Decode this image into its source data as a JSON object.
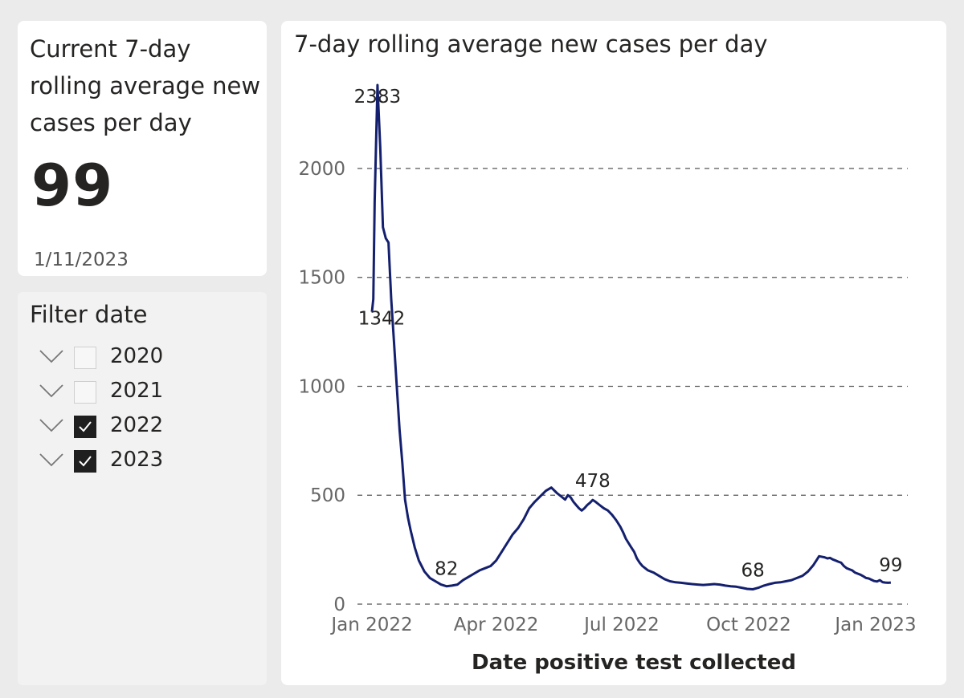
{
  "kpi": {
    "title": "Current 7-day rolling average new cases per day",
    "value": "99",
    "date": "1/11/2023"
  },
  "filter": {
    "title": "Filter date",
    "items": [
      {
        "label": "2020",
        "checked": false
      },
      {
        "label": "2021",
        "checked": false
      },
      {
        "label": "2022",
        "checked": true
      },
      {
        "label": "2023",
        "checked": true
      }
    ]
  },
  "colors": {
    "line": "#14206e",
    "highlight": "#9aa0c8",
    "grid": "#555555"
  },
  "chart_data": {
    "type": "line",
    "title": "7-day rolling average new cases per day",
    "xlabel": "Date positive test collected",
    "ylabel": "",
    "ylim": [
      0,
      2383
    ],
    "yticks": [
      0,
      500,
      1000,
      1500,
      2000
    ],
    "xticks": [
      {
        "label": "Jan 2022",
        "day": 0
      },
      {
        "label": "Apr 2022",
        "day": 90
      },
      {
        "label": "Jul 2022",
        "day": 181
      },
      {
        "label": "Oct 2022",
        "day": 273
      },
      {
        "label": "Jan 2023",
        "day": 365
      }
    ],
    "grid": true,
    "series": [
      {
        "name": "7-day rolling average",
        "x_unit": "days since Jan 1 2022",
        "x": [
          0,
          1,
          2,
          4,
          6,
          8,
          10,
          12,
          14,
          16,
          18,
          20,
          22,
          24,
          26,
          28,
          31,
          34,
          38,
          42,
          46,
          50,
          54,
          58,
          62,
          66,
          70,
          74,
          78,
          82,
          86,
          90,
          94,
          98,
          102,
          106,
          110,
          114,
          118,
          122,
          126,
          130,
          134,
          138,
          140,
          142,
          144,
          146,
          148,
          150,
          152,
          154,
          156,
          158,
          160,
          162,
          165,
          168,
          171,
          174,
          177,
          180,
          182,
          184,
          186,
          188,
          190,
          192,
          194,
          196,
          198,
          200,
          204,
          208,
          212,
          216,
          220,
          224,
          228,
          232,
          236,
          240,
          244,
          248,
          252,
          256,
          260,
          264,
          268,
          272,
          276,
          280,
          284,
          288,
          292,
          296,
          300,
          304,
          308,
          312,
          316,
          320,
          324,
          328,
          330,
          332,
          334,
          336,
          338,
          340,
          342,
          344,
          346,
          348,
          350,
          352,
          354,
          356,
          358,
          360,
          362,
          364,
          366,
          368,
          370,
          372,
          374,
          376
        ],
        "y": [
          1342,
          1400,
          1850,
          2383,
          2100,
          1730,
          1680,
          1660,
          1400,
          1200,
          1000,
          800,
          650,
          480,
          400,
          340,
          260,
          200,
          150,
          120,
          105,
          90,
          82,
          85,
          90,
          110,
          125,
          140,
          155,
          165,
          175,
          200,
          240,
          280,
          320,
          350,
          390,
          440,
          470,
          495,
          520,
          535,
          510,
          490,
          480,
          500,
          490,
          470,
          455,
          440,
          430,
          440,
          455,
          465,
          478,
          470,
          455,
          440,
          430,
          410,
          385,
          355,
          330,
          300,
          280,
          260,
          240,
          210,
          190,
          175,
          165,
          155,
          145,
          130,
          115,
          105,
          100,
          98,
          95,
          92,
          90,
          88,
          90,
          92,
          90,
          85,
          82,
          80,
          75,
          70,
          68,
          75,
          85,
          92,
          98,
          100,
          105,
          110,
          120,
          130,
          150,
          180,
          220,
          215,
          210,
          212,
          205,
          200,
          195,
          190,
          175,
          165,
          160,
          155,
          145,
          140,
          135,
          128,
          120,
          118,
          112,
          106,
          104,
          110,
          101,
          99,
          98,
          99
        ],
        "labels": [
          {
            "text": "2383",
            "x": 4,
            "y": 2383
          },
          {
            "text": "1342",
            "x": 0,
            "y": 1342
          },
          {
            "text": "82",
            "x": 54,
            "y": 82
          },
          {
            "text": "478",
            "x": 160,
            "y": 478
          },
          {
            "text": "68",
            "x": 276,
            "y": 68
          },
          {
            "text": "99",
            "x": 376,
            "y": 99
          }
        ]
      }
    ]
  }
}
